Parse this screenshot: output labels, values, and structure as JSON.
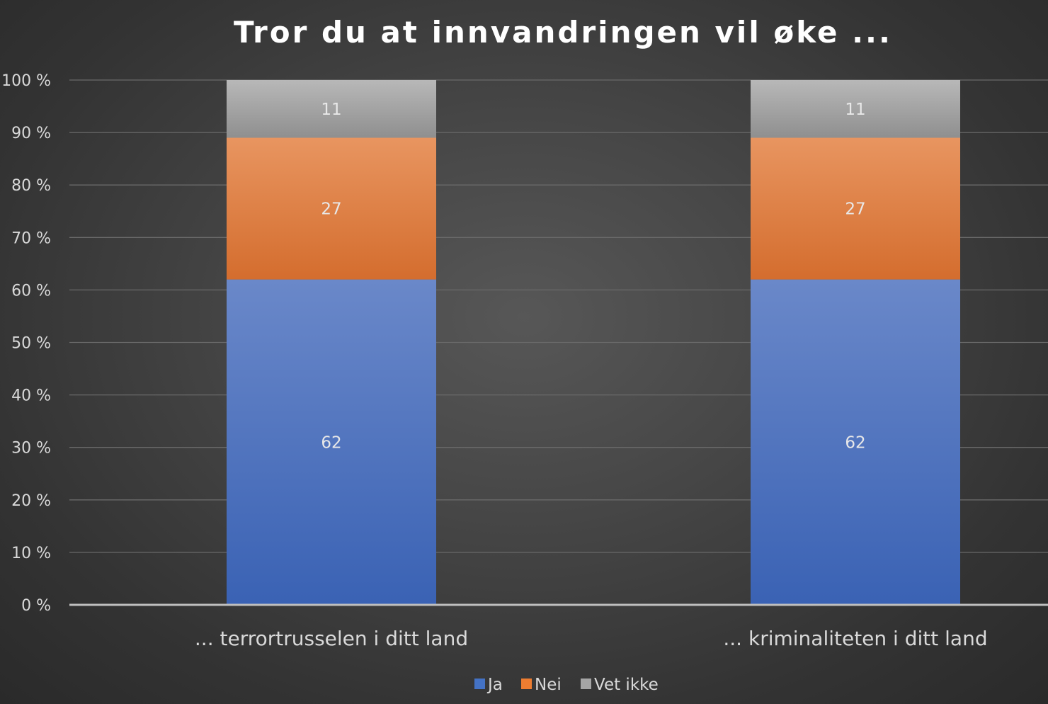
{
  "chart_data": {
    "type": "bar",
    "stacked": true,
    "percent_stacked": true,
    "title": "Tror du at innvandringen vil øke ...",
    "categories": [
      "... terrortrusselen i ditt land",
      "... kriminaliteten i ditt land"
    ],
    "series": [
      {
        "name": "Ja",
        "values": [
          62,
          62
        ],
        "labels": [
          "62",
          "62"
        ],
        "color": "#4472c4",
        "color_light": "#6a88c9",
        "color_dark": "#3a62b4"
      },
      {
        "name": "Nei",
        "values": [
          27,
          27
        ],
        "labels": [
          "27",
          "27"
        ],
        "color": "#ed7d31",
        "color_light": "#e89560",
        "color_dark": "#d46d2e"
      },
      {
        "name": "Vet ikke",
        "values": [
          11,
          11
        ],
        "labels": [
          "11",
          "11"
        ],
        "color": "#a5a5a5",
        "color_light": "#b8b8b8",
        "color_dark": "#8f8f8f"
      }
    ],
    "ylim": [
      0,
      100
    ],
    "yticks": [
      0,
      10,
      20,
      30,
      40,
      50,
      60,
      70,
      80,
      90,
      100
    ],
    "ytick_labels": [
      "0 %",
      "10 %",
      "20 %",
      "30 %",
      "40 %",
      "50 %",
      "60 %",
      "70 %",
      "80 %",
      "90 %",
      "100 %"
    ],
    "xlabel": "",
    "ylabel": "",
    "grid": true,
    "legend_position": "bottom-center"
  }
}
